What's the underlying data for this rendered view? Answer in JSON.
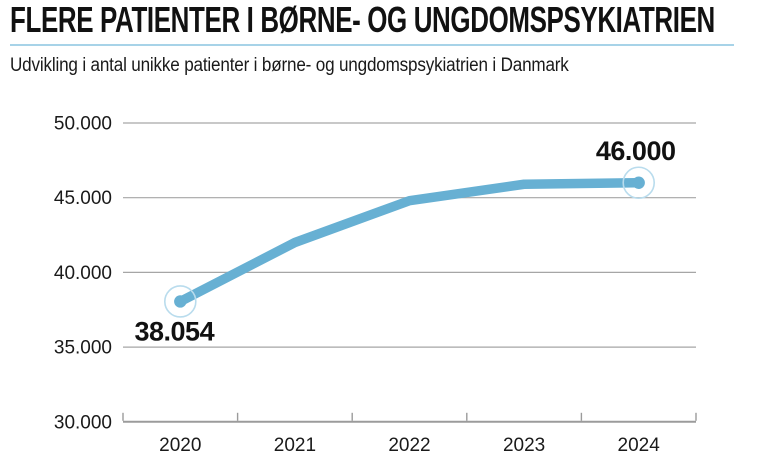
{
  "header": {
    "title": "FLERE PATIENTER I BØRNE- OG UNGDOMSPSYKIATRIEN",
    "subtitle": "Udvikling i antal unikke patienter i børne- og ungdomspsykiatrien i Danmark",
    "underline_color": "#a7d3e8"
  },
  "chart_data": {
    "type": "line",
    "categories": [
      "2020",
      "2021",
      "2022",
      "2023",
      "2024"
    ],
    "values": [
      38054,
      42000,
      44800,
      45900,
      46000
    ],
    "ylim": [
      30000,
      50000
    ],
    "yticks": [
      30000,
      35000,
      40000,
      45000,
      50000
    ],
    "ytick_labels": [
      "30.000",
      "35.000",
      "40.000",
      "45.000",
      "50.000"
    ],
    "grid": true,
    "legend": "none",
    "annotations": [
      {
        "index": 0,
        "text": "38.054",
        "placement": "below"
      },
      {
        "index": 4,
        "text": "46.000",
        "placement": "above"
      }
    ],
    "colors": {
      "line": "#67b0d3",
      "marker": "#67b0d3",
      "halo": "#b9dced",
      "gridline": "#a6a6a6",
      "axis": "#9b9b9b",
      "text": "#1a1a1a"
    }
  }
}
